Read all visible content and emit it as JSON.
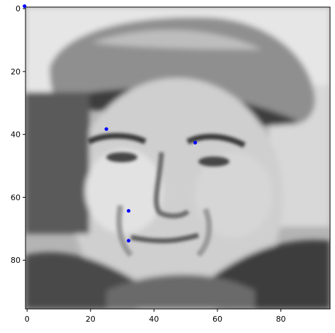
{
  "chart_data": {
    "type": "scatter",
    "background": "grayscale photograph of a face wearing a cap",
    "xlim": [
      -0.5,
      95.5
    ],
    "ylim": [
      95.5,
      -0.5
    ],
    "y_inverted": true,
    "grid": false,
    "x_ticks": [
      0,
      20,
      40,
      60,
      80
    ],
    "y_ticks": [
      0,
      20,
      40,
      60,
      80
    ],
    "x_tick_labels": [
      "0",
      "20",
      "40",
      "60",
      "80"
    ],
    "y_tick_labels": [
      "0",
      "20",
      "40",
      "60",
      "80"
    ],
    "series": [
      {
        "marker_color": "#0000ff",
        "points": [
          {
            "x": -0.8,
            "y": -0.8
          },
          {
            "x": 25.0,
            "y": 38.3
          },
          {
            "x": 53.0,
            "y": 42.6
          },
          {
            "x": 32.0,
            "y": 64.3
          },
          {
            "x": 32.0,
            "y": 73.8
          }
        ]
      }
    ]
  }
}
